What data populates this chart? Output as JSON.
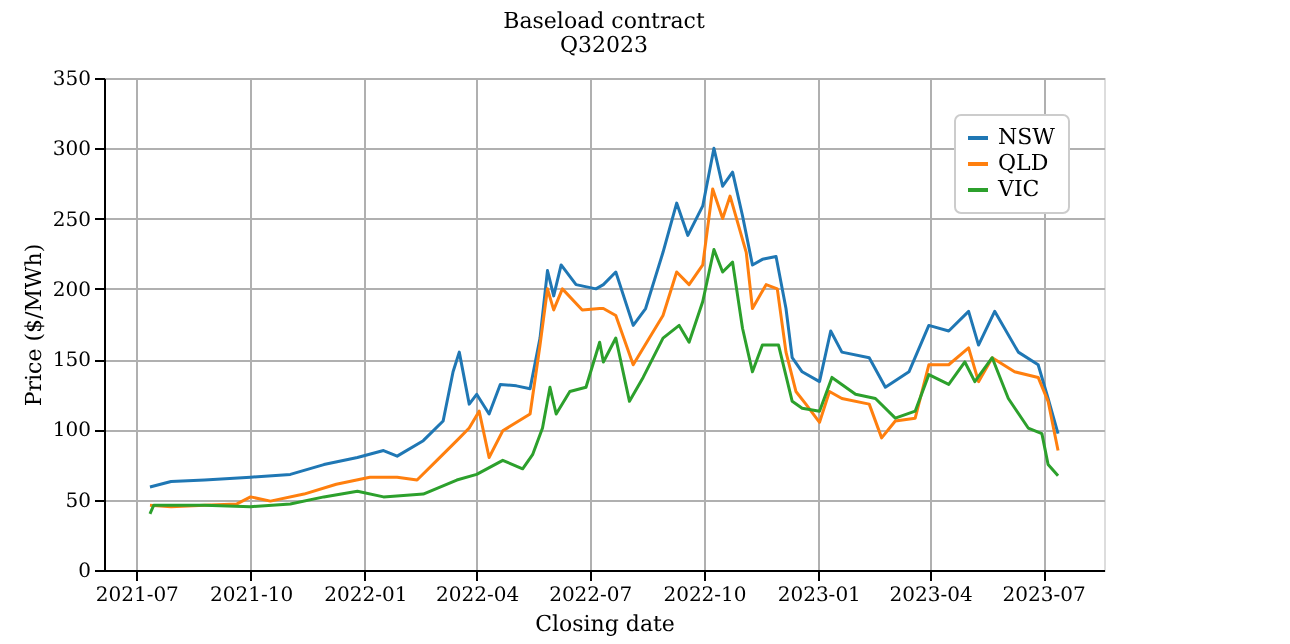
{
  "chart_data": {
    "type": "line",
    "title": "Baseload contract",
    "subtitle": "Q32023",
    "xlabel": "Closing date",
    "ylabel": "Price ($/MWh)",
    "xlim": [
      "2021-06-05",
      "2023-08-19"
    ],
    "xticks": [
      "2021-07",
      "2021-10",
      "2022-01",
      "2022-04",
      "2022-07",
      "2022-10",
      "2023-01",
      "2023-04",
      "2023-07"
    ],
    "ylim": [
      0,
      350
    ],
    "yticks": [
      0,
      50,
      100,
      150,
      200,
      250,
      300,
      350
    ],
    "grid": true,
    "legend": "top right",
    "line_style": "solid",
    "marker": "none",
    "series": [
      {
        "name": "NSW",
        "color": "#1f77b4",
        "x": [
          "2021-07-12",
          "2021-07-29",
          "2021-08-25",
          "2021-10-01",
          "2021-11-02",
          "2021-11-29",
          "2021-12-26",
          "2022-01-16",
          "2022-01-27",
          "2022-02-17",
          "2022-03-05",
          "2022-03-13",
          "2022-03-18",
          "2022-03-26",
          "2022-04-01",
          "2022-04-11",
          "2022-04-20",
          "2022-05-03",
          "2022-05-14",
          "2022-05-22",
          "2022-05-28",
          "2022-06-02",
          "2022-06-08",
          "2022-06-20",
          "2022-07-06",
          "2022-07-12",
          "2022-07-22",
          "2022-08-05",
          "2022-08-15",
          "2022-08-29",
          "2022-09-09",
          "2022-09-18",
          "2022-09-30",
          "2022-10-09",
          "2022-10-16",
          "2022-10-24",
          "2022-11-01",
          "2022-11-09",
          "2022-11-17",
          "2022-11-28",
          "2022-12-06",
          "2022-12-11",
          "2022-12-19",
          "2023-01-02",
          "2023-01-11",
          "2023-01-20",
          "2023-02-11",
          "2023-02-24",
          "2023-03-15",
          "2023-03-31",
          "2023-04-16",
          "2023-05-02",
          "2023-05-10",
          "2023-05-23",
          "2023-06-11",
          "2023-06-27",
          "2023-07-05",
          "2023-07-13"
        ],
        "values": [
          59,
          63,
          64,
          66,
          68,
          75,
          80,
          85,
          81,
          92,
          106,
          141,
          155,
          118,
          125,
          111,
          132,
          131,
          129,
          165,
          213,
          195,
          217,
          203,
          200,
          203,
          212,
          174,
          186,
          226,
          261,
          238,
          259,
          300,
          273,
          283,
          252,
          217,
          221,
          223,
          186,
          151,
          141,
          134,
          170,
          155,
          151,
          130,
          141,
          174,
          170,
          184,
          160,
          184,
          155,
          146,
          122,
          97
        ]
      },
      {
        "name": "QLD",
        "color": "#ff7f0e",
        "x": [
          "2021-07-12",
          "2021-07-29",
          "2021-08-25",
          "2021-09-20",
          "2021-10-01",
          "2021-10-17",
          "2021-11-13",
          "2021-12-09",
          "2022-01-05",
          "2022-01-27",
          "2022-02-12",
          "2022-02-28",
          "2022-03-16",
          "2022-03-26",
          "2022-04-03",
          "2022-04-11",
          "2022-04-22",
          "2022-05-14",
          "2022-05-22",
          "2022-05-28",
          "2022-06-02",
          "2022-06-09",
          "2022-06-25",
          "2022-07-09",
          "2022-07-12",
          "2022-07-22",
          "2022-08-05",
          "2022-08-18",
          "2022-08-29",
          "2022-09-09",
          "2022-09-19",
          "2022-09-30",
          "2022-10-08",
          "2022-10-16",
          "2022-10-22",
          "2022-11-04",
          "2022-11-09",
          "2022-11-20",
          "2022-11-29",
          "2022-12-06",
          "2022-12-14",
          "2022-12-22",
          "2023-01-02",
          "2023-01-10",
          "2023-01-20",
          "2023-02-11",
          "2023-02-21",
          "2023-03-04",
          "2023-03-20",
          "2023-03-31",
          "2023-04-16",
          "2023-05-02",
          "2023-05-10",
          "2023-05-21",
          "2023-06-08",
          "2023-06-27",
          "2023-07-05",
          "2023-07-13"
        ],
        "values": [
          46,
          45,
          46,
          47,
          52,
          49,
          54,
          61,
          66,
          66,
          64,
          78,
          92,
          101,
          113,
          80,
          99,
          111,
          160,
          200,
          185,
          200,
          185,
          186,
          186,
          181,
          146,
          165,
          181,
          212,
          203,
          217,
          271,
          250,
          266,
          226,
          186,
          203,
          200,
          155,
          127,
          118,
          105,
          127,
          122,
          118,
          94,
          106,
          108,
          146,
          146,
          158,
          134,
          151,
          141,
          137,
          120,
          85
        ]
      },
      {
        "name": "VIC",
        "color": "#2ca02c",
        "x": [
          "2021-07-12",
          "2021-07-15",
          "2021-08-25",
          "2021-10-01",
          "2021-11-02",
          "2021-11-29",
          "2021-12-26",
          "2022-01-16",
          "2022-02-17",
          "2022-03-16",
          "2022-04-01",
          "2022-04-22",
          "2022-05-08",
          "2022-05-16",
          "2022-05-24",
          "2022-05-30",
          "2022-06-04",
          "2022-06-15",
          "2022-06-28",
          "2022-07-09",
          "2022-07-12",
          "2022-07-22",
          "2022-08-02",
          "2022-08-13",
          "2022-08-29",
          "2022-09-11",
          "2022-09-19",
          "2022-09-30",
          "2022-10-09",
          "2022-10-16",
          "2022-10-24",
          "2022-11-01",
          "2022-11-09",
          "2022-11-17",
          "2022-11-30",
          "2022-12-11",
          "2022-12-19",
          "2023-01-02",
          "2023-01-12",
          "2023-01-31",
          "2023-02-16",
          "2023-03-04",
          "2023-03-20",
          "2023-03-31",
          "2023-04-16",
          "2023-04-29",
          "2023-05-07",
          "2023-05-21",
          "2023-06-03",
          "2023-06-19",
          "2023-06-30",
          "2023-07-05",
          "2023-07-13"
        ],
        "values": [
          40,
          46,
          46,
          45,
          47,
          52,
          56,
          52,
          54,
          64,
          68,
          78,
          72,
          82,
          101,
          130,
          111,
          127,
          130,
          162,
          148,
          165,
          120,
          137,
          165,
          174,
          162,
          191,
          228,
          212,
          219,
          172,
          141,
          160,
          160,
          120,
          115,
          113,
          137,
          125,
          122,
          108,
          113,
          139,
          132,
          148,
          134,
          151,
          122,
          101,
          97,
          75,
          67
        ]
      }
    ]
  }
}
